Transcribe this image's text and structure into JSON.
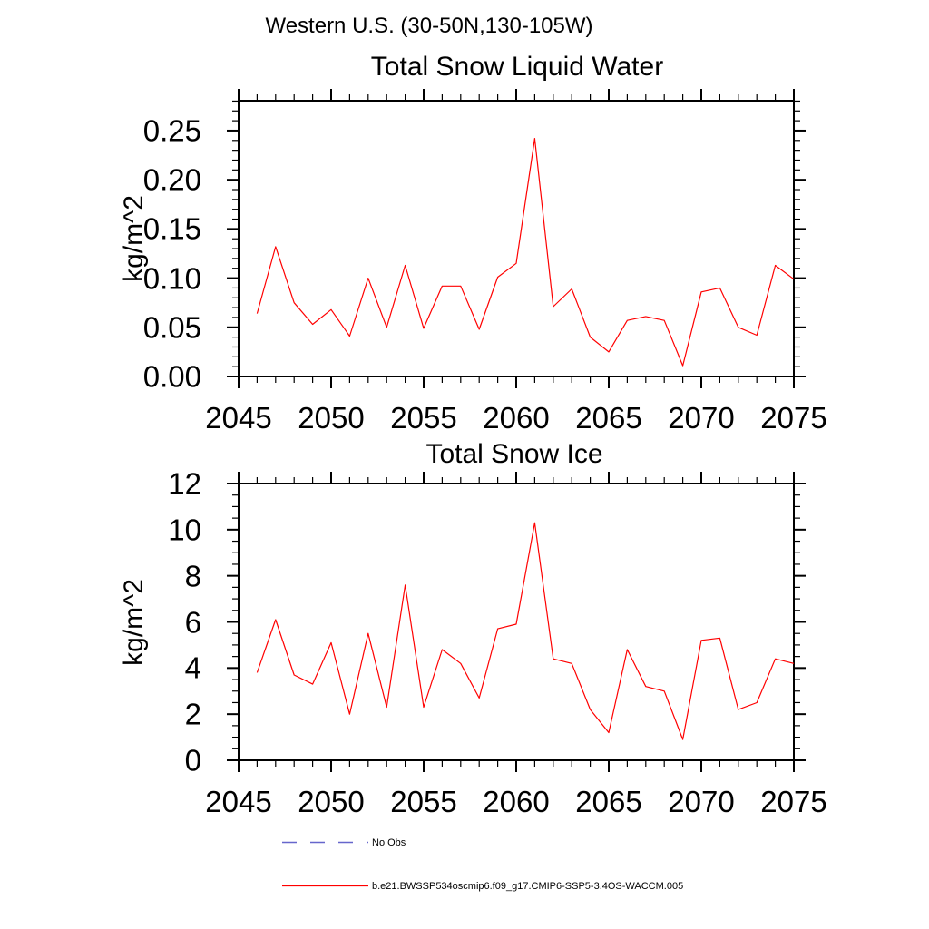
{
  "figure": {
    "main_title": "Western U.S. (30-50N,130-105W)",
    "background_color": "#ffffff",
    "axis_color": "#000000"
  },
  "chart_data": [
    {
      "type": "line",
      "title": "Total Snow Liquid Water",
      "ylabel": "kg/m^2",
      "x_years": [
        2046,
        2047,
        2048,
        2049,
        2050,
        2051,
        2052,
        2053,
        2054,
        2055,
        2056,
        2057,
        2058,
        2059,
        2060,
        2061,
        2062,
        2063,
        2064,
        2065,
        2066,
        2067,
        2068,
        2069,
        2070,
        2071,
        2072,
        2073,
        2074,
        2075
      ],
      "series": [
        {
          "name": "b.e21.BWSSP534oscmip6.f09_g17.CMIP6-SSP5-3.4OS-WACCM.005",
          "color": "#ff0000",
          "values": [
            0.064,
            0.132,
            0.075,
            0.053,
            0.068,
            0.041,
            0.1,
            0.05,
            0.113,
            0.049,
            0.092,
            0.092,
            0.048,
            0.101,
            0.115,
            0.242,
            0.071,
            0.089,
            0.04,
            0.025,
            0.057,
            0.061,
            0.057,
            0.011,
            0.086,
            0.09,
            0.05,
            0.042,
            0.113,
            0.099
          ]
        }
      ],
      "xlim": [
        2045,
        2075
      ],
      "ylim": [
        0,
        0.2804
      ],
      "x_major_ticks": [
        2045,
        2050,
        2055,
        2060,
        2065,
        2070,
        2075
      ],
      "x_minor_step": 1,
      "y_major_ticks": [
        0,
        0.05,
        0.1,
        0.15,
        0.2,
        0.25
      ],
      "y_tick_labels": [
        "0.00",
        "0.05",
        "0.10",
        "0.15",
        "0.20",
        "0.25"
      ],
      "y_minor_step": 0.01,
      "grid": false
    },
    {
      "type": "line",
      "title": "Total Snow Ice",
      "ylabel": "kg/m^2",
      "x_years": [
        2046,
        2047,
        2048,
        2049,
        2050,
        2051,
        2052,
        2053,
        2054,
        2055,
        2056,
        2057,
        2058,
        2059,
        2060,
        2061,
        2062,
        2063,
        2064,
        2065,
        2066,
        2067,
        2068,
        2069,
        2070,
        2071,
        2072,
        2073,
        2074,
        2075
      ],
      "series": [
        {
          "name": "b.e21.BWSSP534oscmip6.f09_g17.CMIP6-SSP5-3.4OS-WACCM.005",
          "color": "#ff0000",
          "values": [
            3.8,
            6.1,
            3.7,
            3.3,
            5.1,
            2.0,
            5.5,
            2.3,
            7.6,
            2.3,
            4.8,
            4.2,
            2.7,
            5.7,
            5.9,
            10.3,
            4.4,
            4.2,
            2.2,
            1.2,
            4.8,
            3.2,
            3.0,
            0.9,
            5.2,
            5.3,
            2.2,
            2.5,
            4.4,
            4.2
          ]
        }
      ],
      "xlim": [
        2045,
        2075
      ],
      "ylim": [
        0,
        12
      ],
      "x_major_ticks": [
        2045,
        2050,
        2055,
        2060,
        2065,
        2070,
        2075
      ],
      "x_minor_step": 1,
      "y_major_ticks": [
        0,
        2,
        4,
        6,
        8,
        10,
        12
      ],
      "y_tick_labels": [
        "0",
        "2",
        "4",
        "6",
        "8",
        "10",
        "12"
      ],
      "y_minor_step": 0.5,
      "grid": false
    }
  ],
  "legend": {
    "position": "bottom-left",
    "items": [
      {
        "label": "No Obs",
        "color": "#6666cc",
        "style": "dashed"
      },
      {
        "label": "b.e21.BWSSP534oscmip6.f09_g17.CMIP6-SSP5-3.4OS-WACCM.005",
        "color": "#ff0000",
        "style": "solid"
      }
    ]
  }
}
